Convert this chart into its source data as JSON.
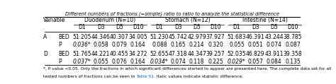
{
  "title": "Different numbers of fractions (=simple) ratio to ratio to analyze the statistical difference",
  "col_groups": [
    {
      "label": "Duodenum (N=10)"
    },
    {
      "label": "Stomach (N=12)"
    },
    {
      "label": "Intestine (N=14)"
    }
  ],
  "subcols": [
    "D1",
    "D3",
    "D5",
    "D10"
  ],
  "rows": [
    {
      "var": "A",
      "type": "BED",
      "values": [
        "51.205",
        "44.346",
        "40.307",
        "34.005",
        "51.230",
        "45.742",
        "42.979",
        "37.927",
        "51.683",
        "46.391",
        "43.244",
        "38.785"
      ],
      "italic": [
        false,
        false,
        false,
        false,
        false,
        false,
        false,
        false,
        false,
        false,
        false,
        false
      ]
    },
    {
      "var": "",
      "type": "P",
      "values": [
        "0.036*",
        "0.058",
        "0.079",
        "0.164",
        "0.088",
        "0.165",
        "0.214",
        "0.320",
        "0.055",
        "0.051",
        "0.074",
        "0.087"
      ],
      "italic": [
        true,
        false,
        false,
        false,
        false,
        false,
        false,
        false,
        false,
        false,
        false,
        false
      ]
    },
    {
      "var": "D",
      "type": "BED",
      "values": [
        "51.765",
        "44.221",
        "40.455",
        "34.272",
        "52.655",
        "47.318",
        "44.347",
        "39.257",
        "52.035",
        "46.829",
        "43.911",
        "39.358"
      ],
      "italic": [
        false,
        false,
        false,
        false,
        false,
        false,
        false,
        false,
        false,
        false,
        false,
        false
      ]
    },
    {
      "var": "",
      "type": "P",
      "values": [
        "0.037*",
        "0.055",
        "0.076",
        "0.164",
        "0.034*",
        "0.074",
        "0.118",
        "0.225",
        "0.029*",
        "0.057",
        "0.084",
        "0.135"
      ],
      "italic": [
        true,
        false,
        false,
        false,
        true,
        false,
        false,
        false,
        true,
        false,
        false,
        false
      ]
    }
  ],
  "footnote_line1": "*, P value <0.05. Only the fractions in which significant differences started to appear are presented here. The complete data set for all",
  "footnote_line2_before": "tested numbers of fractions can be seen in ",
  "footnote_link": "Table S1",
  "footnote_line2_after": ". Italic values indicate statistic difference.",
  "link_color": "#0563C1",
  "bg_color": "#ffffff",
  "line_color": "#000000",
  "font_size": 5.5,
  "title_font_size": 4.9,
  "footnote_font_size": 4.3
}
